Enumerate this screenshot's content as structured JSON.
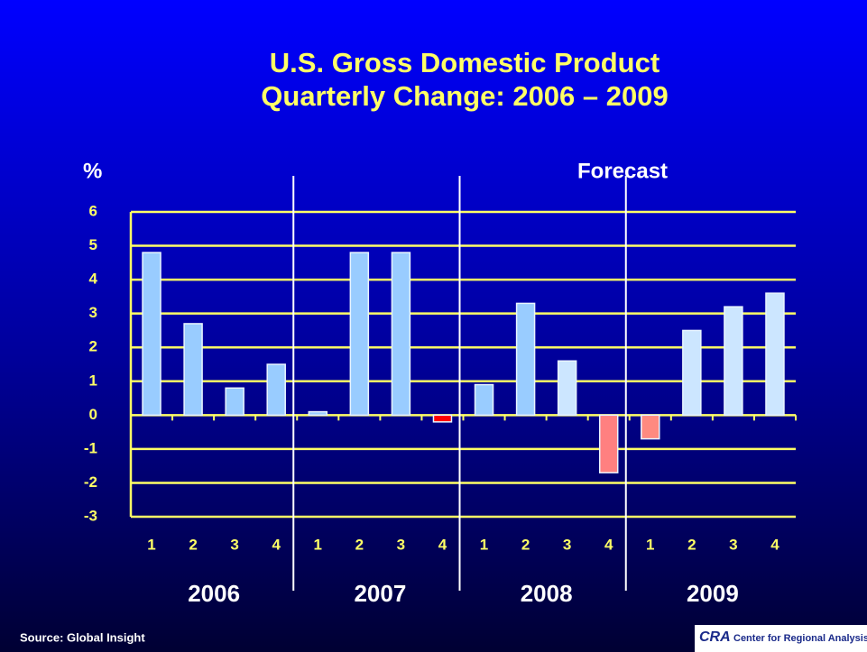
{
  "chart_data": {
    "type": "bar",
    "title": "U.S. Gross Domestic Product",
    "subtitle": "Quarterly Change: 2006 – 2009",
    "y_label": "%",
    "annotation": "Forecast",
    "categories": [
      "1",
      "2",
      "3",
      "4",
      "1",
      "2",
      "3",
      "4",
      "1",
      "2",
      "3",
      "4",
      "1",
      "2",
      "3",
      "4"
    ],
    "years": [
      "2006",
      "2007",
      "2008",
      "2009"
    ],
    "values": [
      4.8,
      2.7,
      0.8,
      1.5,
      0.1,
      4.8,
      4.8,
      -0.2,
      0.9,
      3.3,
      1.6,
      -1.7,
      -0.7,
      2.5,
      3.2,
      3.6
    ],
    "colors": [
      "#99ccff",
      "#99ccff",
      "#99ccff",
      "#99ccff",
      "#99ccff",
      "#99ccff",
      "#99ccff",
      "#ff0000",
      "#99ccff",
      "#99ccff",
      "#cce6ff",
      "#ff8080",
      "#ff8a80",
      "#cce6ff",
      "#cce6ff",
      "#cce6ff"
    ],
    "ylim": [
      -3,
      6
    ],
    "yticks": [
      -3,
      -2,
      -1,
      0,
      1,
      2,
      3,
      4,
      5,
      6
    ],
    "grid": true,
    "source": "Source: Global Insight",
    "logo": "CRA",
    "logo_text": "Center for Regional Analysis"
  }
}
